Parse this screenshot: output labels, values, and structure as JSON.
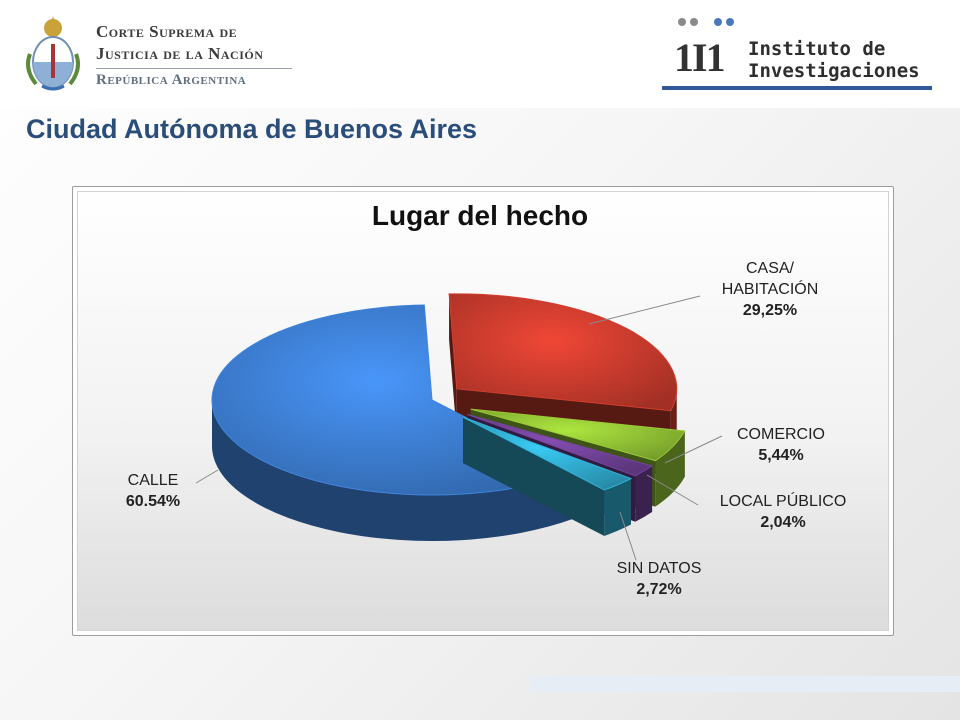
{
  "header": {
    "court": {
      "line1": "Corte Suprema de",
      "line2": "Justicia de la Nación",
      "line3": "República Argentina"
    },
    "institute": {
      "mark": "1I1",
      "line1": "Instituto de",
      "line2": "Investigaciones"
    }
  },
  "page_title": "Ciudad Autónoma de Buenos Aires",
  "chart_data": {
    "type": "pie",
    "title": "Lugar del hecho",
    "three_d": true,
    "slices": [
      {
        "label": "CASA/ HABITACIÓN",
        "value": 29.25,
        "value_label": "29,25%",
        "color": "#c0392b",
        "exploded": true
      },
      {
        "label": "COMERCIO",
        "value": 5.44,
        "value_label": "5,44%",
        "color": "#8ab832",
        "exploded": true
      },
      {
        "label": "LOCAL PÚBLICO",
        "value": 2.04,
        "value_label": "2,04%",
        "color": "#6a3e8e",
        "exploded": true
      },
      {
        "label": "SIN DATOS",
        "value": 2.72,
        "value_label": "2,72%",
        "color": "#2ea2c4",
        "exploded": true
      },
      {
        "label": "CALLE",
        "value": 60.54,
        "value_label": "60.54%",
        "color": "#3a78c8",
        "exploded": false
      }
    ]
  }
}
